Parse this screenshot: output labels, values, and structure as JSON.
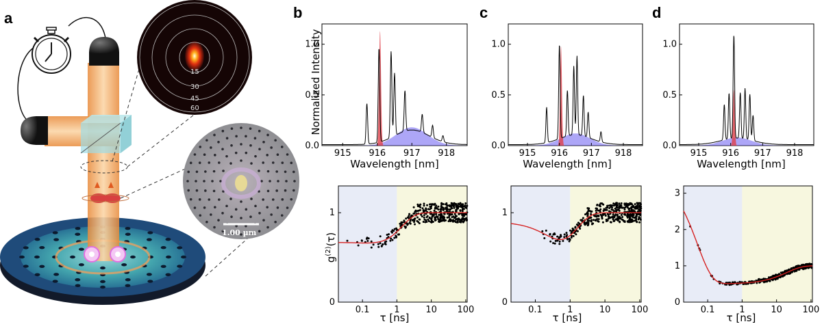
{
  "panels": {
    "a": "a",
    "b": "b",
    "c": "c",
    "d": "d"
  },
  "illustration": {
    "far_field_ring_labels": [
      "15",
      "30",
      "45",
      "60"
    ],
    "scale_bar_label": "1.00 µm"
  },
  "colors": {
    "qd_peak": "#e0404a",
    "cavity_mode": "#6a5cf0",
    "fit_line": "#d62020",
    "bunching_bg": "#e8ecf7",
    "antibunch_bg": "#f7f7df",
    "beam": "#f0a050"
  },
  "spectra_axes": {
    "ylabel": "Normalized Intensity",
    "xlabel": "Wavelength [nm]",
    "x_ticks": [
      "915",
      "916",
      "917",
      "918"
    ],
    "y_ticks": [
      "0.0",
      "0.5",
      "1.0"
    ]
  },
  "g2_axes": {
    "ylabel": "g(2)(τ)",
    "xlabel": "τ [ns]",
    "x_ticks": [
      "0.1",
      "1",
      "10",
      "100"
    ]
  },
  "chart_data": [
    {
      "panel": "b",
      "type": "line",
      "xlabel": "Wavelength [nm]",
      "ylabel": "Normalized Intensity",
      "xlim": [
        914.4,
        918.6
      ],
      "ylim": [
        0,
        1.2
      ],
      "lines": [
        {
          "x": 915.7,
          "height": 0.4
        },
        {
          "x": 916.05,
          "height": 0.93
        },
        {
          "x": 916.4,
          "height": 0.85
        },
        {
          "x": 916.5,
          "height": 0.62
        },
        {
          "x": 916.8,
          "height": 0.4
        },
        {
          "x": 917.3,
          "height": 0.18
        },
        {
          "x": 917.6,
          "height": 0.12
        },
        {
          "x": 917.9,
          "height": 0.06
        }
      ],
      "qd_peak": {
        "center": 916.08,
        "height": 1.13
      },
      "cavity_mode": {
        "center": 917.0,
        "height": 0.18
      }
    },
    {
      "panel": "c",
      "type": "line",
      "xlabel": "Wavelength [nm]",
      "xlim": [
        914.4,
        918.6
      ],
      "ylim": [
        0,
        1.2
      ],
      "lines": [
        {
          "x": 915.6,
          "height": 0.35
        },
        {
          "x": 916.0,
          "height": 0.93
        },
        {
          "x": 916.25,
          "height": 0.45
        },
        {
          "x": 916.45,
          "height": 0.68
        },
        {
          "x": 916.55,
          "height": 0.78
        },
        {
          "x": 916.75,
          "height": 0.4
        },
        {
          "x": 916.9,
          "height": 0.25
        },
        {
          "x": 917.3,
          "height": 0.1
        }
      ],
      "qd_peak": {
        "center": 916.05,
        "height": 0.98
      },
      "cavity_mode": {
        "center": 916.5,
        "height": 0.12
      }
    },
    {
      "panel": "d",
      "type": "line",
      "xlabel": "Wavelength [nm]",
      "xlim": [
        914.4,
        918.6
      ],
      "ylim": [
        0,
        1.2
      ],
      "lines": [
        {
          "x": 915.8,
          "height": 0.35
        },
        {
          "x": 915.95,
          "height": 0.45
        },
        {
          "x": 916.1,
          "height": 1.02
        },
        {
          "x": 916.3,
          "height": 0.45
        },
        {
          "x": 916.45,
          "height": 0.5
        },
        {
          "x": 916.6,
          "height": 0.45
        },
        {
          "x": 916.7,
          "height": 0.25
        }
      ],
      "qd_peak": {
        "center": 916.1,
        "height": 0.55
      },
      "cavity_mode": {
        "center": 916.2,
        "height": 0.08
      }
    },
    {
      "panel": "b",
      "type": "scatter",
      "xlabel": "τ [ns]",
      "ylabel": "g(2)(τ)",
      "xscale": "log",
      "xlim": [
        0.02,
        110
      ],
      "ylim": [
        0,
        1.3
      ],
      "y_ticks": [
        "0",
        "1"
      ],
      "fit": {
        "baseline": 1.0,
        "antibunch_depth": 0.5,
        "antibunch_tau": 1.2,
        "bunch_amp": 0.17,
        "bunch_tau": 0.3
      },
      "shaded_split": 1.0
    },
    {
      "panel": "c",
      "type": "scatter",
      "xlabel": "τ [ns]",
      "xscale": "log",
      "xlim": [
        0.02,
        110
      ],
      "ylim": [
        0,
        1.3
      ],
      "y_ticks": [
        "0",
        "1"
      ],
      "fit": {
        "baseline": 1.0,
        "antibunch_depth": 0.55,
        "antibunch_tau": 1.4,
        "bunch_amp": 0.45,
        "bunch_tau": 0.3
      },
      "shaded_split": 1.0
    },
    {
      "panel": "d",
      "type": "scatter",
      "xlabel": "τ [ns]",
      "xscale": "log",
      "xlim": [
        0.02,
        110
      ],
      "ylim": [
        0,
        3.2
      ],
      "y_ticks": [
        "0",
        "1",
        "2",
        "3"
      ],
      "fit": {
        "baseline": 1.0,
        "antibunch_depth": 0.5,
        "antibunch_tau": 20,
        "bunch_amp": 3.0,
        "bunch_tau": 0.05
      },
      "shaded_split": 1.0
    }
  ]
}
